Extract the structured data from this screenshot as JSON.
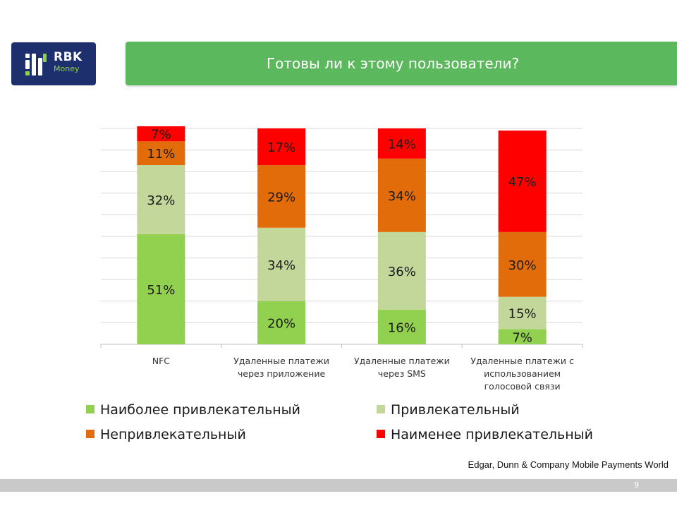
{
  "header": {
    "logo_line1": "RBK",
    "logo_line2": "Money",
    "title": "Готовы ли к этому пользователи?"
  },
  "chart_data": {
    "type": "bar",
    "stacked": true,
    "title": "",
    "xlabel": "",
    "ylabel": "",
    "ylim": [
      0,
      100
    ],
    "grid": true,
    "legend_position": "bottom",
    "categories": [
      [
        "NFC"
      ],
      [
        "Удаленные платежи",
        "через приложение"
      ],
      [
        "Удаленные платежи",
        "через SMS"
      ],
      [
        "Удаленные платежи с",
        "использованием",
        "голосовой связи"
      ]
    ],
    "series": [
      {
        "name": "Наиболее привлекательный",
        "color": "#92d050",
        "values": [
          51,
          20,
          16,
          7
        ],
        "labels": [
          "51%",
          "20%",
          "16%",
          "7%"
        ]
      },
      {
        "name": "Привлекательный",
        "color": "#c4d79b",
        "values": [
          32,
          34,
          36,
          15
        ],
        "labels": [
          "32%",
          "34%",
          "36%",
          "15%"
        ]
      },
      {
        "name": "Непривлекательный",
        "color": "#e36c0a",
        "values": [
          11,
          29,
          34,
          30
        ],
        "labels": [
          "11%",
          "29%",
          "34%",
          "30%"
        ]
      },
      {
        "name": "Наименее привлекательный",
        "color": "#ff0000",
        "values": [
          7,
          17,
          14,
          47
        ],
        "labels": [
          "7%",
          "17%",
          "14%",
          "47%"
        ]
      }
    ],
    "legend_order": [
      0,
      1,
      2,
      3
    ]
  },
  "footer": {
    "source": "Edgar, Dunn & Company Mobile Payments World",
    "page_number": "9"
  }
}
